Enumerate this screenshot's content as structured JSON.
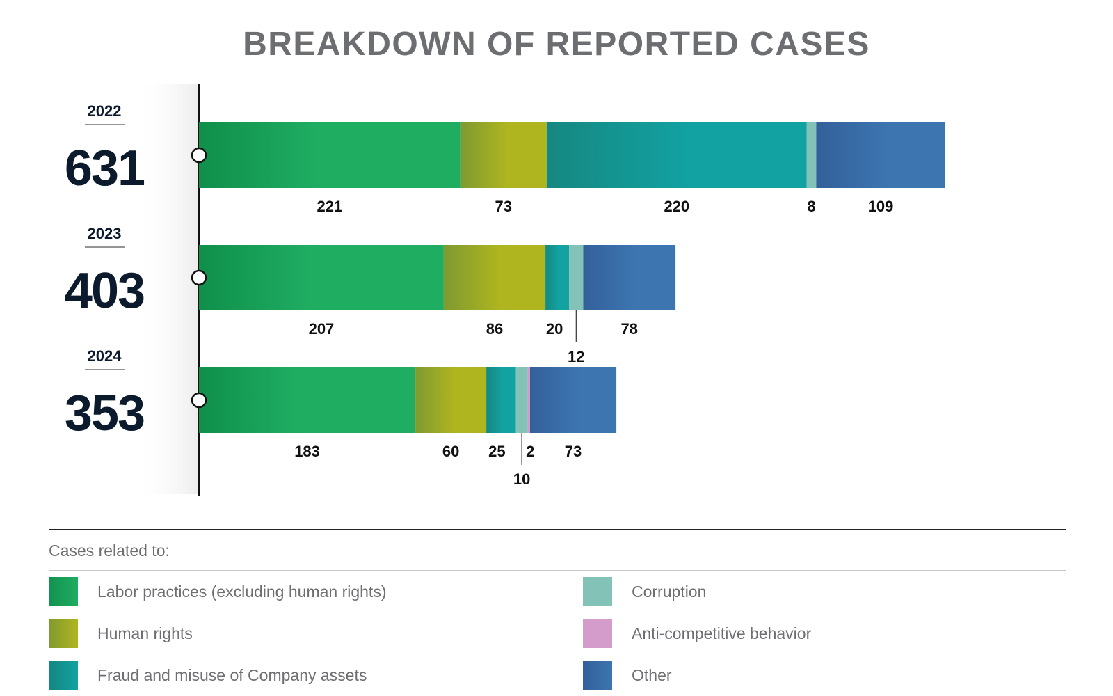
{
  "title": "BREAKDOWN OF REPORTED CASES",
  "legend_title": "Cases related to:",
  "colors": {
    "labor": "#1fad62",
    "human_rights": "#afb51f",
    "fraud": "#12a2a2",
    "corruption": "#83c2b6",
    "anticompetitive": "#d49ccb",
    "other": "#3d75b0"
  },
  "chart_data": {
    "type": "bar",
    "orientation": "horizontal",
    "stacked": true,
    "title": "BREAKDOWN OF REPORTED CASES",
    "categories": [
      "2022",
      "2023",
      "2024"
    ],
    "totals": [
      "631",
      "403",
      "353"
    ],
    "series": [
      {
        "name": "Labor practices (excluding human rights)",
        "key": "labor",
        "values": [
          221,
          207,
          183
        ]
      },
      {
        "name": "Human rights",
        "key": "human_rights",
        "values": [
          73,
          86,
          60
        ]
      },
      {
        "name": "Fraud and misuse of Company assets",
        "key": "fraud",
        "values": [
          220,
          20,
          25
        ]
      },
      {
        "name": "Corruption",
        "key": "corruption",
        "values": [
          8,
          12,
          10
        ]
      },
      {
        "name": "Anti-competitive behavior",
        "key": "anticompetitive",
        "values": [
          0,
          0,
          2
        ]
      },
      {
        "name": "Other",
        "key": "other",
        "values": [
          109,
          78,
          73
        ]
      }
    ],
    "legend": {
      "position": "bottom",
      "title": "Cases related to:"
    }
  }
}
